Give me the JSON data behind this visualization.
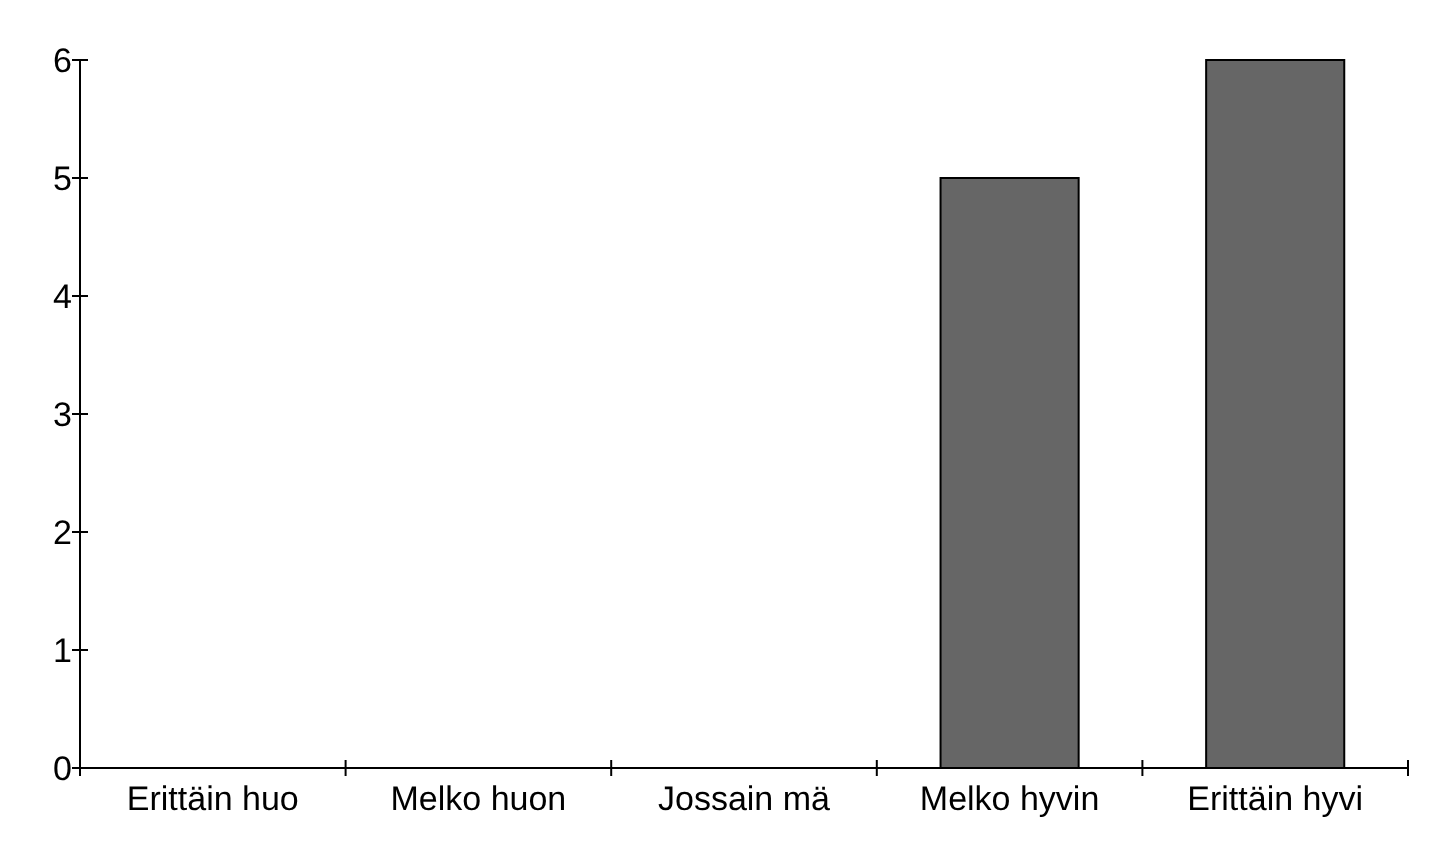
{
  "chart_data": {
    "type": "bar",
    "categories": [
      "Erittäin huo",
      "Melko huon",
      "Jossain mä",
      "Melko hyvin",
      "Erittäin hyvi"
    ],
    "values": [
      0,
      0,
      0,
      5,
      6
    ],
    "color": "#666666",
    "ylim": [
      0,
      6
    ],
    "yticks": [
      0,
      1,
      2,
      3,
      4,
      5,
      6
    ],
    "grid": false
  }
}
